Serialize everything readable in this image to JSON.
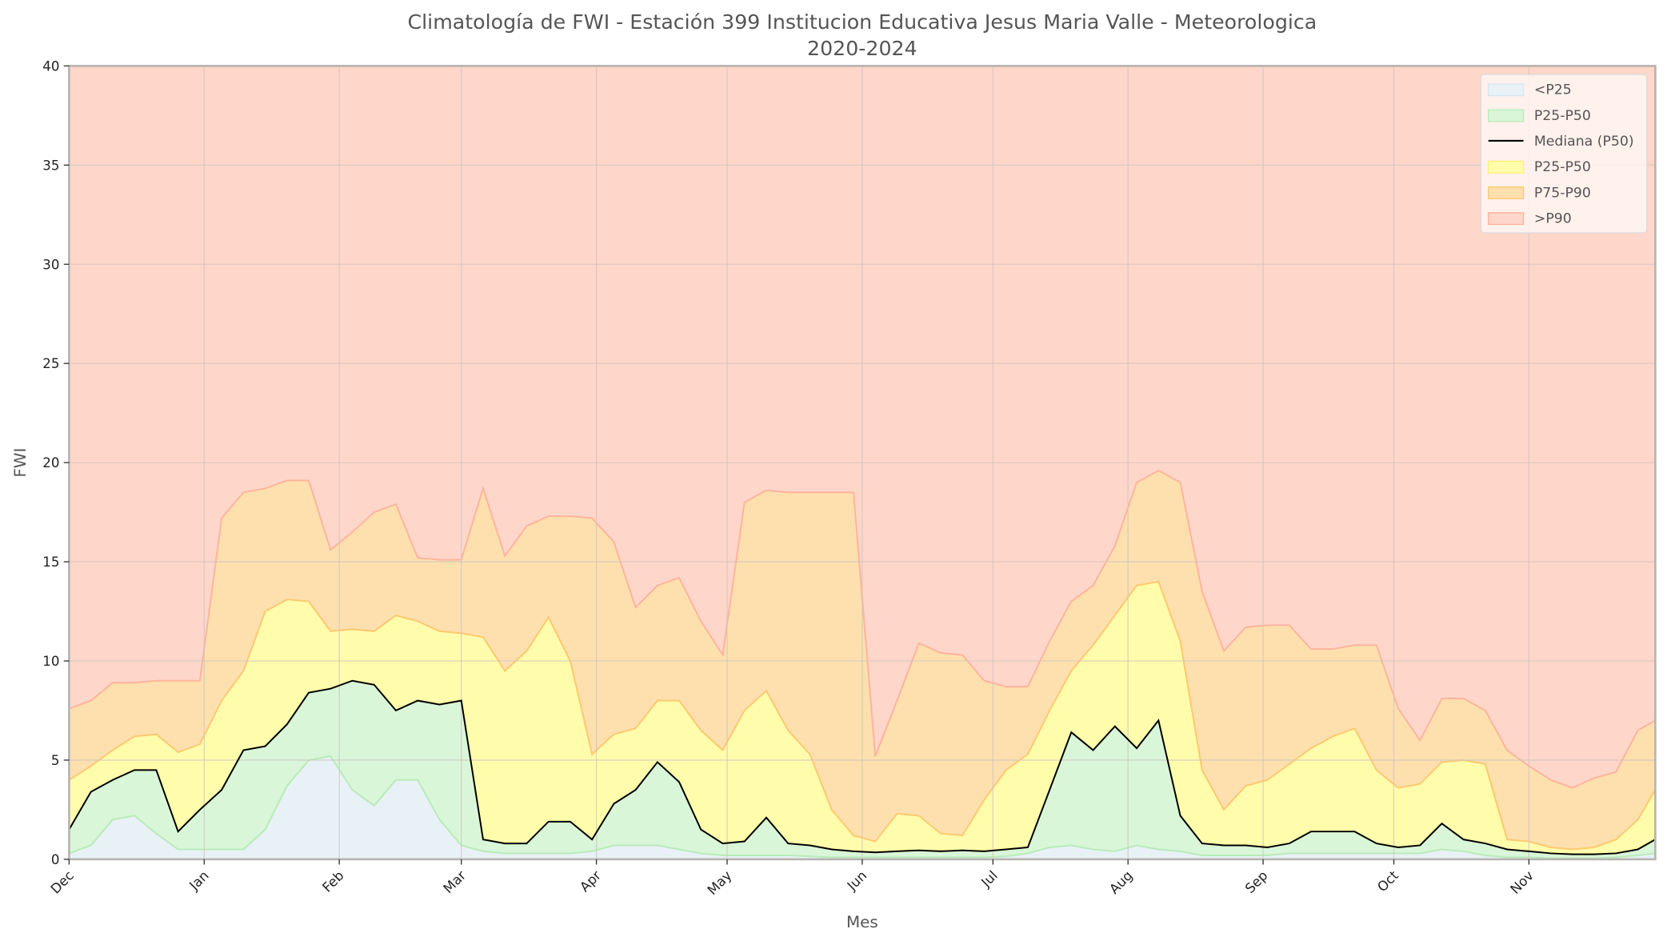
{
  "chart_data": {
    "type": "area",
    "title": "Climatología de FWI - Estación 399 Institucion Educativa Jesus Maria Valle - Meteorologica",
    "subtitle": "2020-2024",
    "xlabel": "Mes",
    "ylabel": "FWI",
    "ylim": [
      0,
      40
    ],
    "yticks": [
      0,
      5,
      10,
      15,
      20,
      25,
      30,
      35,
      40
    ],
    "xticks": [
      {
        "date": "12-01",
        "label": "Dec"
      },
      {
        "date": "01-01",
        "label": "Jan"
      },
      {
        "date": "02-01",
        "label": "Feb"
      },
      {
        "date": "03-01",
        "label": "Mar"
      },
      {
        "date": "04-01",
        "label": "Apr"
      },
      {
        "date": "05-01",
        "label": "May"
      },
      {
        "date": "06-01",
        "label": "Jun"
      },
      {
        "date": "07-01",
        "label": "Jul"
      },
      {
        "date": "08-01",
        "label": "Aug"
      },
      {
        "date": "09-01",
        "label": "Sep"
      },
      {
        "date": "10-01",
        "label": "Oct"
      },
      {
        "date": "11-01",
        "label": "Nov"
      }
    ],
    "grid": true,
    "legend_position": "top-right",
    "legend": [
      {
        "label": "<P25",
        "kind": "fill",
        "color": "#e8f1f6",
        "edge": "#d6e6f0"
      },
      {
        "label": "P25-P50",
        "kind": "fill",
        "color": "#d9f6d9",
        "edge": "#b8ecb8"
      },
      {
        "label": "Mediana (P50)",
        "kind": "line",
        "color": "#000000"
      },
      {
        "label": "P25-P50",
        "kind": "fill",
        "color": "#fffdab",
        "edge": "#fff176"
      },
      {
        "label": "P75-P90",
        "kind": "fill",
        "color": "#fde0ae",
        "edge": "#ffc870"
      },
      {
        "label": ">P90",
        "kind": "fill",
        "color": "#ffd6ca",
        "edge": "#ffb49c"
      }
    ],
    "x": [
      "12-01",
      "12-06",
      "12-11",
      "12-16",
      "12-21",
      "12-26",
      "12-31",
      "01-05",
      "01-10",
      "01-15",
      "01-20",
      "01-25",
      "01-30",
      "02-04",
      "02-09",
      "02-14",
      "02-19",
      "02-24",
      "03-01",
      "03-06",
      "03-11",
      "03-16",
      "03-21",
      "03-26",
      "03-31",
      "04-05",
      "04-10",
      "04-15",
      "04-20",
      "04-25",
      "04-30",
      "05-05",
      "05-10",
      "05-15",
      "05-20",
      "05-25",
      "05-30",
      "06-04",
      "06-09",
      "06-14",
      "06-19",
      "06-24",
      "06-29",
      "07-04",
      "07-09",
      "07-14",
      "07-19",
      "07-24",
      "07-29",
      "08-03",
      "08-08",
      "08-13",
      "08-18",
      "08-23",
      "08-28",
      "09-02",
      "09-07",
      "09-12",
      "09-17",
      "09-22",
      "09-27",
      "10-02",
      "10-07",
      "10-12",
      "10-17",
      "10-22",
      "10-27",
      "11-01",
      "11-06",
      "11-11",
      "11-16",
      "11-21",
      "11-26",
      "11-30"
    ],
    "series": [
      {
        "name": "P25",
        "values": [
          0.3,
          0.7,
          2.0,
          2.2,
          1.3,
          0.5,
          0.5,
          0.5,
          0.5,
          1.5,
          3.7,
          5.0,
          5.2,
          3.5,
          2.7,
          4.0,
          4.0,
          2.0,
          0.7,
          0.4,
          0.3,
          0.3,
          0.3,
          0.3,
          0.4,
          0.7,
          0.7,
          0.7,
          0.5,
          0.3,
          0.2,
          0.2,
          0.2,
          0.2,
          0.15,
          0.1,
          0.1,
          0.1,
          0.1,
          0.1,
          0.1,
          0.1,
          0.1,
          0.15,
          0.3,
          0.6,
          0.7,
          0.5,
          0.4,
          0.7,
          0.5,
          0.4,
          0.2,
          0.2,
          0.2,
          0.2,
          0.3,
          0.3,
          0.3,
          0.3,
          0.3,
          0.3,
          0.3,
          0.5,
          0.4,
          0.2,
          0.1,
          0.1,
          0.05,
          0.05,
          0.05,
          0.1,
          0.2,
          0.3
        ]
      },
      {
        "name": "P50",
        "values": [
          1.5,
          3.4,
          4.0,
          4.5,
          4.5,
          1.4,
          2.5,
          3.5,
          5.5,
          5.7,
          6.8,
          8.4,
          8.6,
          9.0,
          8.8,
          7.5,
          8.0,
          7.8,
          8.0,
          1.0,
          0.8,
          0.8,
          1.9,
          1.9,
          1.0,
          2.8,
          3.5,
          4.9,
          3.9,
          1.5,
          0.8,
          0.9,
          2.1,
          0.8,
          0.7,
          0.5,
          0.4,
          0.35,
          0.4,
          0.45,
          0.4,
          0.45,
          0.4,
          0.5,
          0.6,
          3.5,
          6.4,
          5.5,
          6.7,
          5.6,
          7.0,
          2.2,
          0.8,
          0.7,
          0.7,
          0.6,
          0.8,
          1.4,
          1.4,
          1.4,
          0.8,
          0.6,
          0.7,
          1.8,
          1.0,
          0.8,
          0.5,
          0.4,
          0.3,
          0.25,
          0.25,
          0.3,
          0.5,
          1.0
        ]
      },
      {
        "name": "P75",
        "values": [
          4.0,
          4.7,
          5.5,
          6.2,
          6.3,
          5.4,
          5.8,
          8.0,
          9.5,
          12.5,
          13.1,
          13.0,
          11.5,
          11.6,
          11.5,
          12.3,
          12.0,
          11.5,
          11.4,
          11.2,
          9.5,
          10.5,
          12.2,
          10.0,
          5.3,
          6.3,
          6.6,
          8.0,
          8.0,
          6.5,
          5.5,
          7.5,
          8.5,
          6.5,
          5.3,
          2.5,
          1.2,
          0.9,
          2.3,
          2.2,
          1.3,
          1.2,
          3.0,
          4.5,
          5.3,
          7.5,
          9.5,
          10.8,
          12.3,
          13.8,
          14.0,
          11.0,
          4.5,
          2.5,
          3.7,
          4.0,
          4.8,
          5.6,
          6.2,
          6.6,
          4.5,
          3.6,
          3.8,
          4.9,
          5.0,
          4.8,
          1.0,
          0.9,
          0.6,
          0.5,
          0.6,
          1.0,
          2.0,
          3.5
        ]
      },
      {
        "name": "P90",
        "values": [
          7.6,
          8.0,
          8.9,
          8.9,
          9.0,
          9.0,
          9.0,
          17.2,
          18.5,
          18.7,
          19.1,
          19.1,
          15.6,
          16.5,
          17.5,
          17.9,
          15.2,
          15.1,
          15.1,
          18.7,
          15.3,
          16.8,
          17.3,
          17.3,
          17.2,
          16.0,
          12.7,
          13.8,
          14.2,
          12.0,
          10.3,
          18.0,
          18.6,
          18.5,
          18.5,
          18.5,
          18.5,
          5.2,
          8.0,
          10.9,
          10.4,
          10.3,
          9.0,
          8.7,
          8.7,
          11.0,
          13.0,
          13.8,
          15.8,
          19.0,
          19.6,
          19.0,
          13.5,
          10.5,
          11.7,
          11.8,
          11.8,
          10.6,
          10.6,
          10.8,
          10.8,
          7.6,
          6.0,
          8.1,
          8.1,
          7.5,
          5.5,
          4.7,
          4.0,
          3.6,
          4.1,
          4.4,
          6.5,
          7.0
        ]
      }
    ]
  }
}
